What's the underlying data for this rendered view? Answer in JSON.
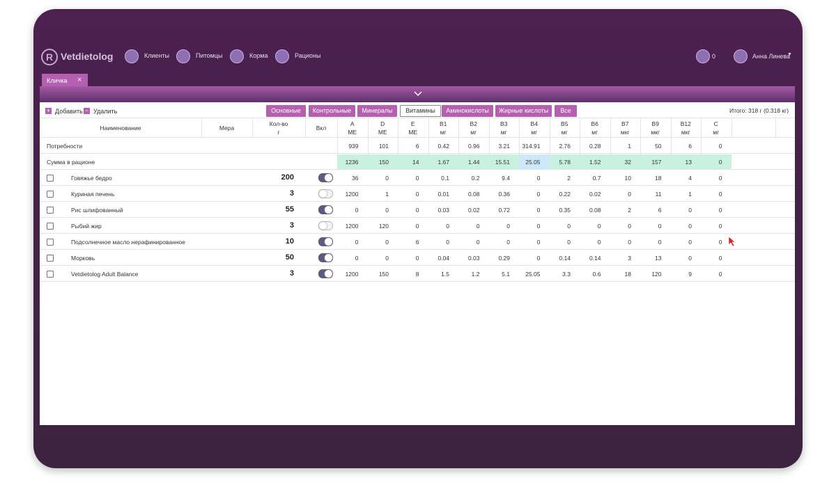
{
  "header": {
    "brand": "Vetdietolog",
    "nav": [
      "Клиенты",
      "Питомцы",
      "Корма",
      "Рационы"
    ],
    "notifications": "0",
    "user": "Анна Линева"
  },
  "tab": "Кличка",
  "toolbar": {
    "add": "Добавить",
    "remove": "Удалить",
    "tabs": [
      "Основные",
      "Контрольные",
      "Минералы",
      "Витамины",
      "Аминокислоты",
      "Жирные кислоты",
      "Все"
    ],
    "active_tab": 3,
    "total": "Итого: 318 г (0.318 кг)"
  },
  "table": {
    "columns": {
      "name": "Наименование",
      "measure": "Мера",
      "qty": "Кол-во",
      "qty_unit": "г",
      "enabled": "Вкл"
    },
    "nutrients": [
      {
        "name": "A",
        "unit": "МЕ"
      },
      {
        "name": "D",
        "unit": "МЕ"
      },
      {
        "name": "E",
        "unit": "МЕ"
      },
      {
        "name": "B1",
        "unit": "мг"
      },
      {
        "name": "B2",
        "unit": "мг"
      },
      {
        "name": "B3",
        "unit": "мг"
      },
      {
        "name": "B4",
        "unit": "мг"
      },
      {
        "name": "B5",
        "unit": "мг"
      },
      {
        "name": "B6",
        "unit": "мг"
      },
      {
        "name": "B7",
        "unit": "мкг"
      },
      {
        "name": "B9",
        "unit": "мкг"
      },
      {
        "name": "B12",
        "unit": "мкг"
      },
      {
        "name": "C",
        "unit": "мг"
      }
    ],
    "requirements": {
      "label": "Потребности",
      "values": [
        939,
        101,
        6,
        0.42,
        0.96,
        3.21,
        314.91,
        2.76,
        0.28,
        1,
        50,
        6,
        0
      ]
    },
    "sum": {
      "label": "Сумма в рационе",
      "values": [
        1236,
        150,
        14,
        1.67,
        1.44,
        15.51,
        25.05,
        5.78,
        1.52,
        32,
        157,
        13,
        0
      ],
      "low_index": 6
    },
    "rows": [
      {
        "name": "Говяжье бедро",
        "qty": 200,
        "enabled": true,
        "values": [
          36,
          0,
          0,
          0.1,
          0.2,
          9.4,
          0,
          2,
          0.7,
          10,
          18,
          4,
          0
        ]
      },
      {
        "name": "Куриная печень",
        "qty": 3,
        "enabled": false,
        "values": [
          1200,
          1,
          0,
          0.01,
          0.08,
          0.36,
          0,
          0.22,
          0.02,
          0,
          11,
          1,
          0
        ]
      },
      {
        "name": "Рис шлифованный",
        "qty": 55,
        "enabled": true,
        "values": [
          0,
          0,
          0,
          0.03,
          0.02,
          0.72,
          0,
          0.35,
          0.08,
          2,
          6,
          0,
          0
        ]
      },
      {
        "name": "Рыбий жир",
        "qty": 3,
        "enabled": false,
        "values": [
          1200,
          120,
          0,
          0,
          0,
          0,
          0,
          0,
          0,
          0,
          0,
          0,
          0
        ]
      },
      {
        "name": "Подсолнечное масло нерафинированное",
        "qty": 10,
        "enabled": true,
        "values": [
          0,
          0,
          6,
          0,
          0,
          0,
          0,
          0,
          0,
          0,
          0,
          0,
          0
        ]
      },
      {
        "name": "Морковь",
        "qty": 50,
        "enabled": true,
        "values": [
          0,
          0,
          0,
          0.04,
          0.03,
          0.29,
          0,
          0.14,
          0.14,
          3,
          13,
          0,
          0
        ]
      },
      {
        "name": "Vetdietolog Adult Balance",
        "qty": 3,
        "enabled": true,
        "values": [
          1200,
          150,
          8,
          1.5,
          1.2,
          5.1,
          25.05,
          3.3,
          0.6,
          18,
          120,
          9,
          0
        ]
      }
    ]
  }
}
